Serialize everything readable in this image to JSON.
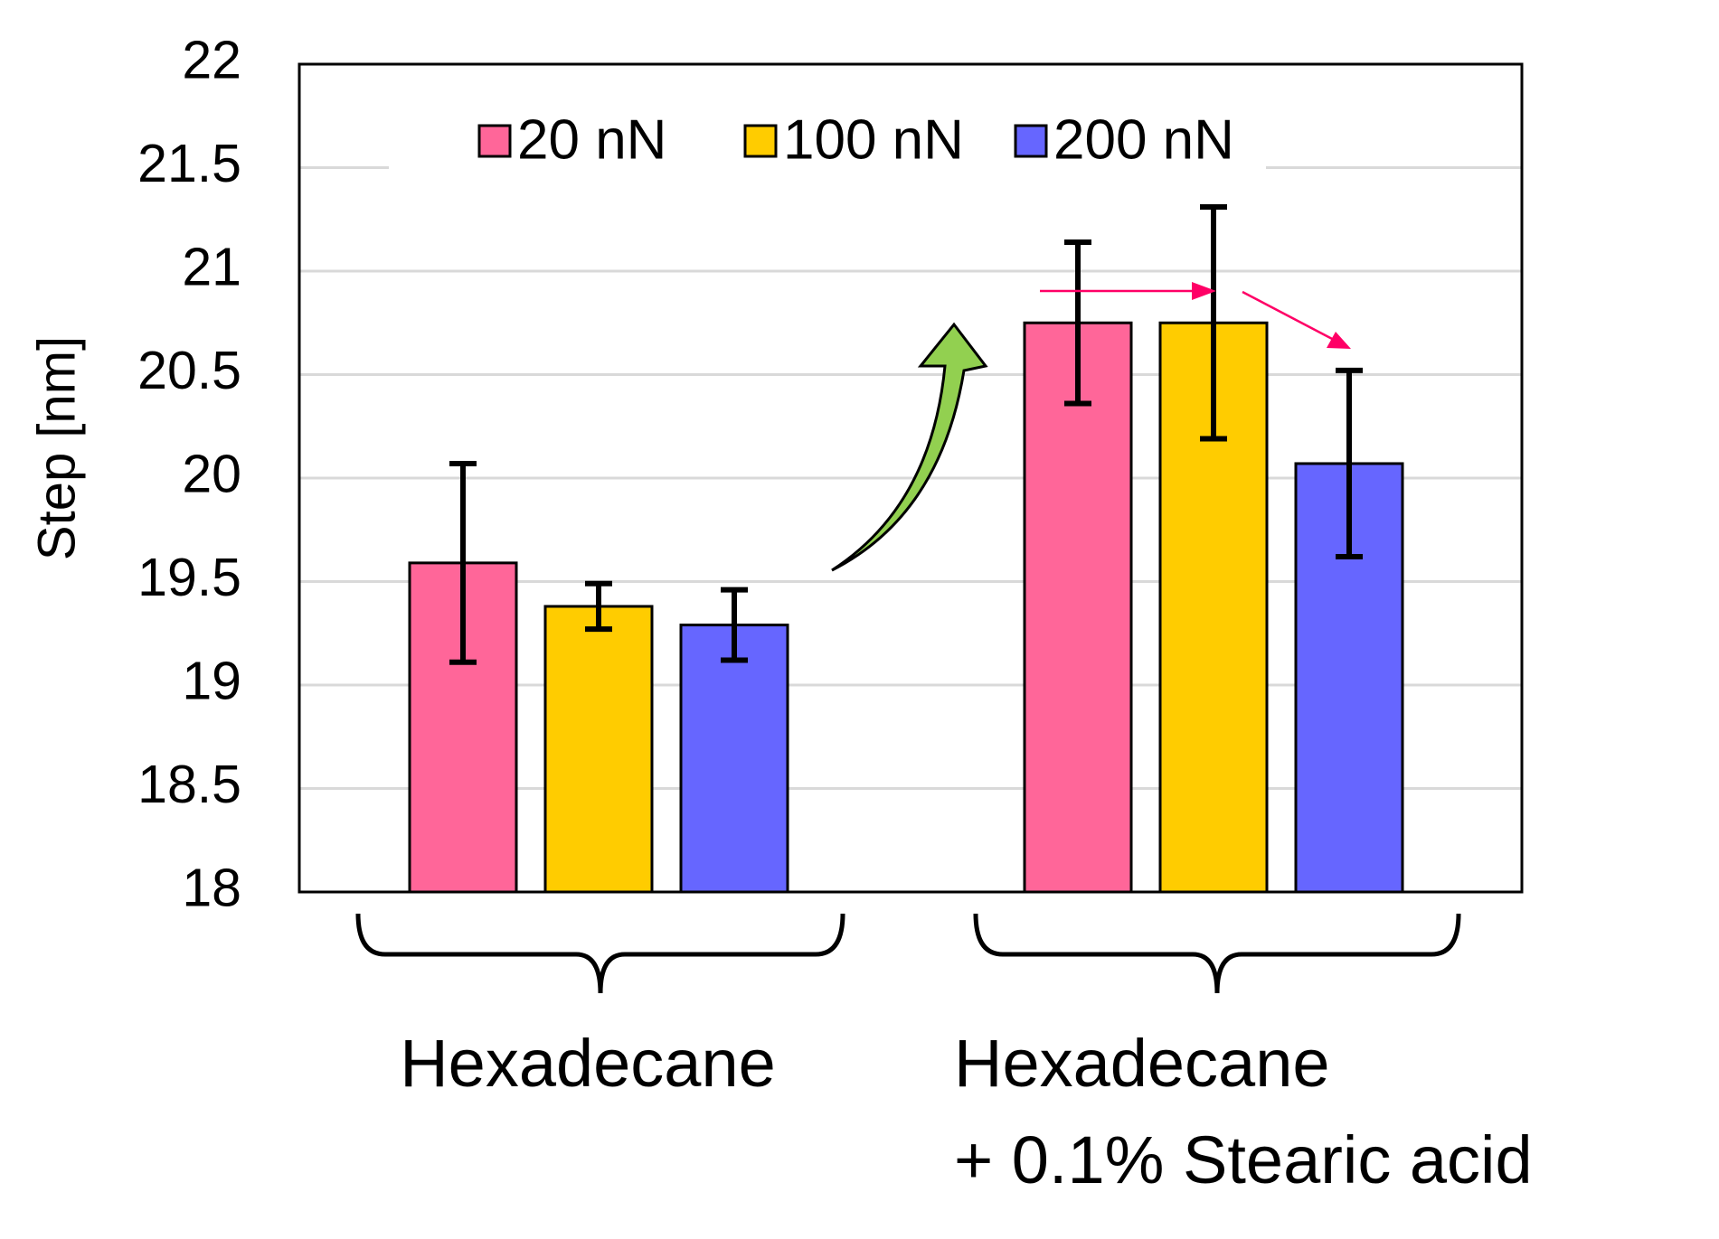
{
  "chart_data": {
    "type": "bar",
    "y_label": "Step [nm]",
    "categories": [
      "Hexadecane",
      "Hexadecane\n+ 0.1% Stearic acid"
    ],
    "series": [
      {
        "name": "20 nN",
        "color": "#ff6699",
        "values": [
          19.59,
          20.75
        ],
        "errors": [
          0.48,
          0.39
        ]
      },
      {
        "name": "100 nN",
        "color": "#ffcc00",
        "values": [
          19.38,
          20.75
        ],
        "errors": [
          0.11,
          0.56
        ]
      },
      {
        "name": "200 nN",
        "color": "#6666ff",
        "values": [
          19.29,
          20.07
        ],
        "errors": [
          0.17,
          0.45
        ]
      }
    ],
    "ylim": [
      18,
      22
    ],
    "yticks": [
      18,
      18.5,
      19,
      19.5,
      20,
      20.5,
      21,
      21.5,
      22
    ],
    "grid": true,
    "legend": "top"
  }
}
